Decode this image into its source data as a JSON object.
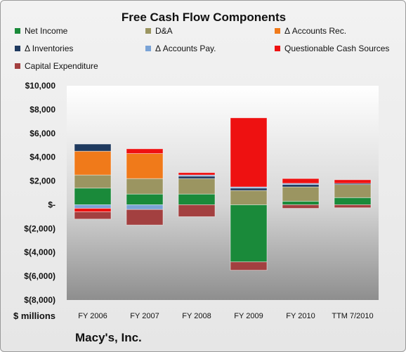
{
  "chart_data": {
    "type": "bar",
    "stacked": true,
    "title": "Free Cash Flow Components",
    "xlabel": "$ millions",
    "ylabel": "",
    "ylim": [
      -8000,
      10000
    ],
    "yticks": [
      -8000,
      -6000,
      -4000,
      -2000,
      0,
      2000,
      4000,
      6000,
      8000,
      10000
    ],
    "ytick_labels": [
      "$(8,000)",
      "$(6,000)",
      "$(4,000)",
      "$(2,000)",
      "$-",
      "$2,000",
      "$4,000",
      "$6,000",
      "$8,000",
      "$10,000"
    ],
    "categories": [
      "FY 2006",
      "FY 2007",
      "FY 2008",
      "FY 2009",
      "FY 2010",
      "TTM 7/2010"
    ],
    "series": [
      {
        "name": "Net Income",
        "color": "#1a8a3a",
        "values": [
          1400,
          900,
          900,
          -4800,
          300,
          600
        ]
      },
      {
        "name": "D&A",
        "color": "#9b9561",
        "values": [
          1100,
          1300,
          1300,
          1200,
          1200,
          1100
        ]
      },
      {
        "name": "Δ Accounts Rec.",
        "color": "#f07a1a",
        "values": [
          2000,
          2100,
          0,
          0,
          0,
          0
        ]
      },
      {
        "name": "Δ Inventories",
        "color": "#1f3a5f",
        "values": [
          600,
          0,
          200,
          200,
          200,
          100
        ]
      },
      {
        "name": "Δ Accounts Pay.",
        "color": "#7aa3d6",
        "values": [
          -300,
          -400,
          100,
          100,
          100,
          0
        ]
      },
      {
        "name": "Questionable Cash Sources",
        "color": "#ee1111",
        "values": [
          -300,
          400,
          200,
          5800,
          400,
          300
        ]
      },
      {
        "name": "Capital Expenditure",
        "color": "#a34040",
        "values": [
          -600,
          -1300,
          -1000,
          -700,
          -300,
          -250
        ]
      }
    ],
    "legend_position": "top",
    "grid": false,
    "footer": "Macy's, Inc."
  }
}
